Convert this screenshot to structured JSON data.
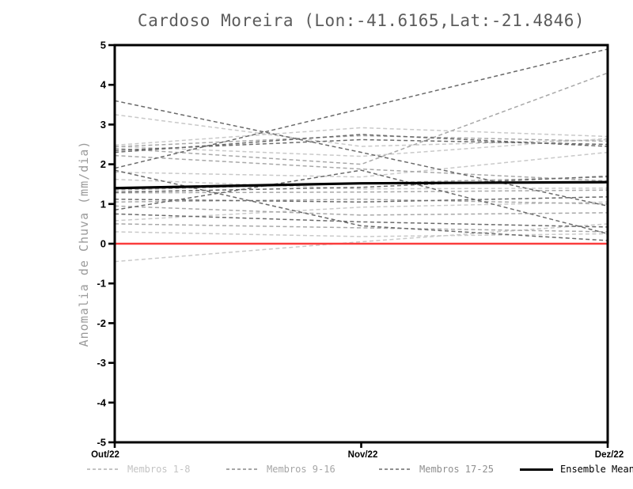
{
  "title": "Cardoso Moreira (Lon:-41.6165,Lat:-21.4846)",
  "legend": {
    "items": [
      {
        "label": "Membros 1-8",
        "color": "#c4c4c4",
        "line_color": "#c9c9c9",
        "style": "dashed"
      },
      {
        "label": "Membros 9-16",
        "color": "#a6a6a6",
        "line_color": "#a8a8a8",
        "style": "dashed"
      },
      {
        "label": "Membros 17-25",
        "color": "#8f8f8f",
        "line_color": "#6a6a6a",
        "style": "dashed"
      },
      {
        "label": "Ensemble Mean",
        "color": "#000000",
        "line_color": "#000000",
        "style": "solid"
      }
    ]
  },
  "chart_data": {
    "type": "line",
    "title": "Cardoso Moreira (Lon:-41.6165,Lat:-21.4846)",
    "xlabel": "",
    "ylabel": "Anomalia de Chuva (mm/dia)",
    "x": [
      "Out/22",
      "Nov/22",
      "Dez/22"
    ],
    "ylim": [
      -5,
      5
    ],
    "yticks": [
      5,
      4,
      3,
      2,
      1,
      0,
      -1,
      -2,
      -3,
      -4,
      -5
    ],
    "grid": false,
    "legend_position": "bottom",
    "frame": "full-box",
    "zero_line": {
      "value": 0,
      "color": "#fa3c3c"
    },
    "groups": [
      {
        "name": "Membros 1-8",
        "color": "#c9c9c9",
        "style": "dashed",
        "members": [
          [
            3.25,
            2.45,
            2.62
          ],
          [
            2.48,
            2.92,
            2.7
          ],
          [
            2.45,
            2.2,
            2.65
          ],
          [
            1.8,
            1.68,
            2.3
          ],
          [
            1.62,
            1.38,
            1.4
          ],
          [
            0.58,
            0.92,
            1.05
          ],
          [
            0.3,
            0.18,
            0.25
          ],
          [
            -0.45,
            0.05,
            0.5
          ]
        ]
      },
      {
        "name": "Membros 9-16",
        "color": "#a8a8a8",
        "style": "dashed",
        "members": [
          [
            2.44,
            2.72,
            2.58
          ],
          [
            2.4,
            2.0,
            4.3
          ],
          [
            2.22,
            1.88,
            1.58
          ],
          [
            1.35,
            1.52,
            1.68
          ],
          [
            1.28,
            1.3,
            1.35
          ],
          [
            1.05,
            1.12,
            1.0
          ],
          [
            0.95,
            0.72,
            0.78
          ],
          [
            0.5,
            0.4,
            0.3
          ]
        ]
      },
      {
        "name": "Membros 17-25",
        "color": "#6a6a6a",
        "style": "dashed",
        "members": [
          [
            3.6,
            2.3,
            0.95
          ],
          [
            1.9,
            3.4,
            4.9
          ],
          [
            2.35,
            2.62,
            2.5
          ],
          [
            1.85,
            0.45,
            0.08
          ],
          [
            0.85,
            1.85,
            0.25
          ],
          [
            1.12,
            1.05,
            1.18
          ],
          [
            2.3,
            2.75,
            2.45
          ],
          [
            0.75,
            0.55,
            0.42
          ],
          [
            1.3,
            1.42,
            1.7
          ]
        ]
      }
    ],
    "ensemble_mean": {
      "name": "Ensemble Mean",
      "color": "#000000",
      "style": "solid",
      "values": [
        1.4,
        1.52,
        1.55
      ]
    }
  }
}
